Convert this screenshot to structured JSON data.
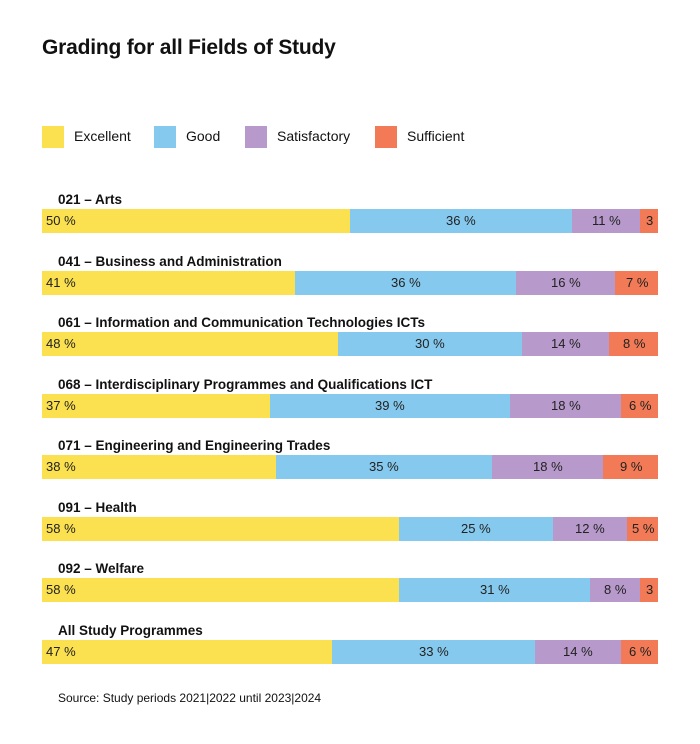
{
  "title": "Grading for all Fields of Study",
  "source": "Source: Study periods 2021|2022 until 2023|2024",
  "colors": {
    "excellent": "#FBE14F",
    "good": "#86C9EE",
    "satisfactory": "#B79ACB",
    "sufficient": "#F27A56"
  },
  "chart_data": {
    "type": "bar",
    "orientation": "horizontal",
    "stacked": true,
    "percent_stacked": true,
    "title": "Grading for all Fields of Study",
    "legend": "top-left",
    "categories": [
      "021 – Arts",
      "041 – Business and Administration",
      "061 – Information and Communication Technologies ICTs",
      "068 – Interdisciplinary Programmes and Qualifications ICT",
      "071  – Engineering and Engineering Trades",
      "091 – Health",
      "092 – Welfare",
      "All Study Programmes"
    ],
    "series": [
      {
        "name": "Excellent",
        "color": "#FBE14F",
        "values": [
          50,
          41,
          48,
          37,
          38,
          58,
          58,
          47
        ],
        "labels": [
          "50 %",
          "41 %",
          "48 %",
          "37 %",
          "38 %",
          "58 %",
          "58 %",
          "47 %"
        ]
      },
      {
        "name": "Good",
        "color": "#86C9EE",
        "values": [
          36,
          36,
          30,
          39,
          35,
          25,
          31,
          33
        ],
        "labels": [
          "36 %",
          "36 %",
          "30 %",
          "39 %",
          "35 %",
          "25 %",
          "31 %",
          "33 %"
        ]
      },
      {
        "name": "Satisfactory",
        "color": "#B79ACB",
        "values": [
          11,
          16,
          14,
          18,
          18,
          12,
          8,
          14
        ],
        "labels": [
          "11 %",
          "16 %",
          "14 %",
          "18 %",
          "18 %",
          "12 %",
          "8 %",
          "14 %"
        ]
      },
      {
        "name": "Sufficient",
        "color": "#F27A56",
        "values": [
          3,
          7,
          8,
          6,
          9,
          5,
          3,
          6
        ],
        "labels": [
          "3",
          "7 %",
          "8 %",
          "6 %",
          "9 %",
          "5 %",
          "3",
          "6 %"
        ]
      }
    ]
  }
}
